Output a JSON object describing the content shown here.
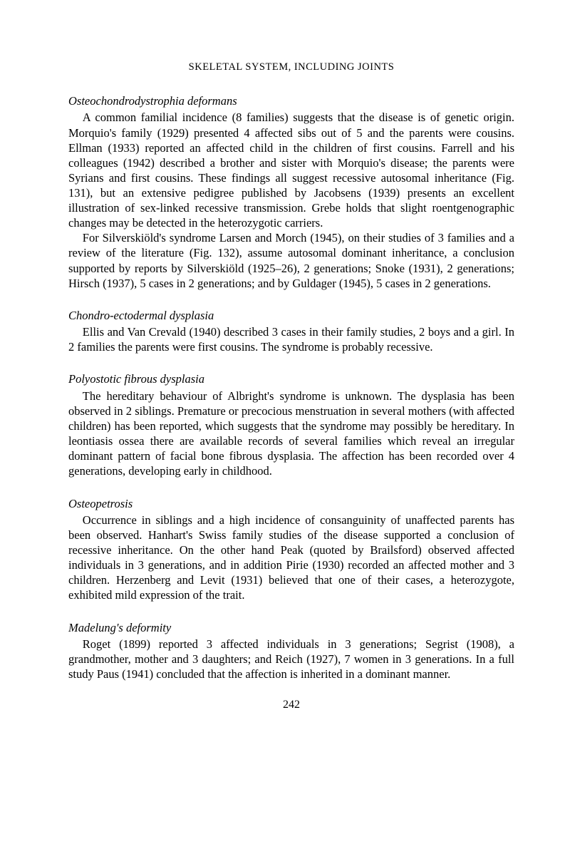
{
  "header": "SKELETAL SYSTEM, INCLUDING JOINTS",
  "sections": [
    {
      "title": "Osteochondrodystrophia deformans",
      "paragraphs": [
        "A common familial incidence (8 families) suggests that the disease is of genetic origin. Morquio's family (1929) presented 4 affected sibs out of 5 and the parents were cousins. Ellman (1933) reported an affected child in the children of first cousins. Farrell and his colleagues (1942) described a brother and sister with Morquio's disease; the parents were Syrians and first cousins. These findings all suggest recessive autosomal inheritance (Fig. 131), but an extensive pedigree published by Jacobsens (1939) presents an excellent illustration of sex-linked recessive transmission. Grebe holds that slight roentgenographic changes may be detected in the heterozygotic carriers.",
        "For Silverskiöld's syndrome Larsen and Morch (1945), on their studies of 3 families and a review of the literature (Fig. 132), assume autosomal dominant inheritance, a conclusion supported by reports by Silverskiöld (1925–26), 2 generations; Snoke (1931), 2 generations; Hirsch (1937), 5 cases in 2 generations; and by Guldager (1945), 5 cases in 2 generations."
      ]
    },
    {
      "title": "Chondro-ectodermal dysplasia",
      "paragraphs": [
        "Ellis and Van Crevald (1940) described 3 cases in their family studies, 2 boys and a girl. In 2 families the parents were first cousins. The syndrome is probably recessive."
      ]
    },
    {
      "title": "Polyostotic fibrous dysplasia",
      "paragraphs": [
        "The hereditary behaviour of Albright's syndrome is unknown. The dysplasia has been observed in 2 siblings. Premature or precocious menstruation in several mothers (with affected children) has been reported, which suggests that the syndrome may possibly be hereditary. In leontiasis ossea there are available records of several families which reveal an irregular dominant pattern of facial bone fibrous dysplasia. The affection has been recorded over 4 generations, developing early in childhood."
      ]
    },
    {
      "title": "Osteopetrosis",
      "paragraphs": [
        "Occurrence in siblings and a high incidence of consanguinity of unaffected parents has been observed. Hanhart's Swiss family studies of the disease supported a conclusion of recessive inheritance. On the other hand Peak (quoted by Brailsford) observed affected individuals in 3 generations, and in addition Pirie (1930) recorded an affected mother and 3 children. Herzenberg and Levit (1931) believed that one of their cases, a heterozygote, exhibited mild expression of the trait."
      ]
    },
    {
      "title": "Madelung's deformity",
      "paragraphs": [
        "Roget (1899) reported 3 affected individuals in 3 generations; Segrist (1908), a grandmother, mother and 3 daughters; and Reich (1927), 7 women in 3 generations. In a full study Paus (1941) concluded that the affection is inherited in a dominant manner."
      ]
    }
  ],
  "pageNumber": "242"
}
